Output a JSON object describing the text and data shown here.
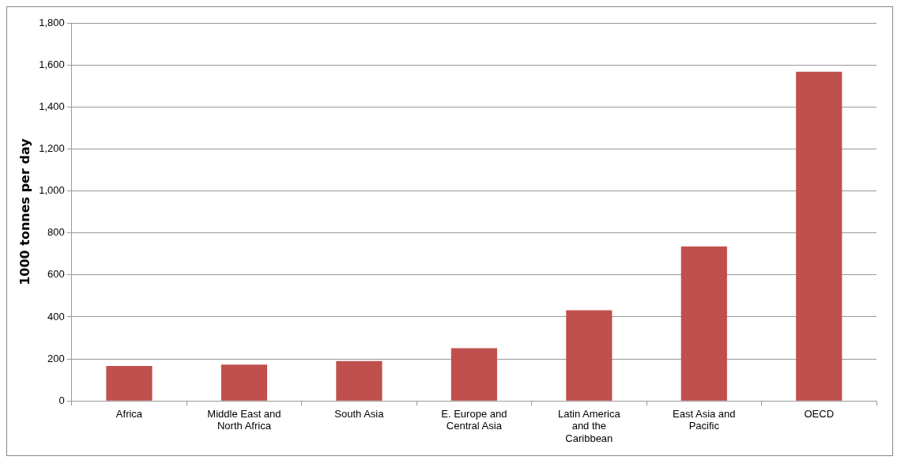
{
  "chart_data": {
    "type": "bar",
    "ylabel": "1000 tonnes per day",
    "categories": [
      "Africa",
      "Middle East and North Africa",
      "South Asia",
      "E. Europe and Central Asia",
      "Latin America and the Caribbean",
      "East Asia and Pacific",
      "OECD"
    ],
    "values": [
      166,
      173,
      190,
      251,
      432,
      736,
      1568
    ],
    "color": "#c0504d",
    "ylim": [
      0,
      1800
    ],
    "yticks": [
      {
        "value": 0,
        "label": "0"
      },
      {
        "value": 200,
        "label": "200"
      },
      {
        "value": 400,
        "label": "400"
      },
      {
        "value": 600,
        "label": "600"
      },
      {
        "value": 800,
        "label": "800"
      },
      {
        "value": 1000,
        "label": "1,000"
      },
      {
        "value": 1200,
        "label": "1,200"
      },
      {
        "value": 1400,
        "label": "1,400"
      },
      {
        "value": 1600,
        "label": "1,600"
      },
      {
        "value": 1800,
        "label": "1,800"
      }
    ],
    "grid": "y",
    "legend": false
  }
}
